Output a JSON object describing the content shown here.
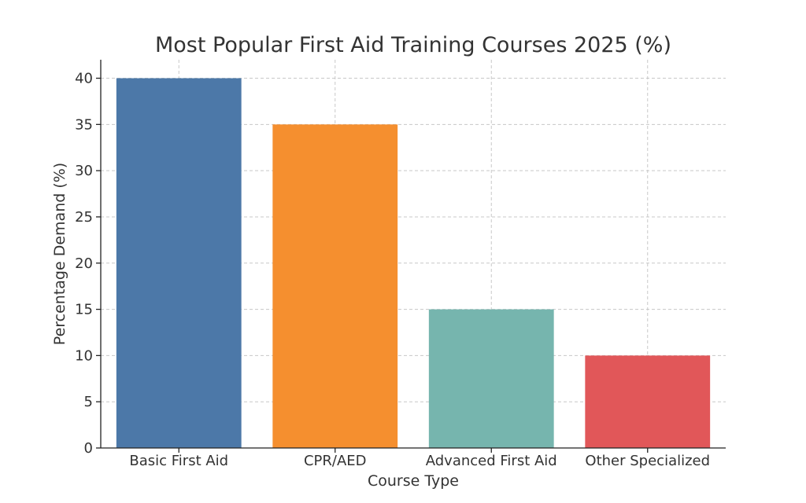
{
  "chart_data": {
    "type": "bar",
    "title": "Most Popular First Aid Training Courses 2025 (%)",
    "xlabel": "Course Type",
    "ylabel": "Percentage Demand (%)",
    "categories": [
      "Basic First Aid",
      "CPR/AED",
      "Advanced First Aid",
      "Other Specialized"
    ],
    "values": [
      40,
      35,
      15,
      10
    ],
    "colors": [
      "#4c78a8",
      "#f58f2f",
      "#76b5ae",
      "#e15759"
    ],
    "ylim": [
      0,
      42
    ],
    "yticks": [
      0,
      5,
      10,
      15,
      20,
      25,
      30,
      35,
      40
    ],
    "grid": true,
    "legend": "none"
  }
}
